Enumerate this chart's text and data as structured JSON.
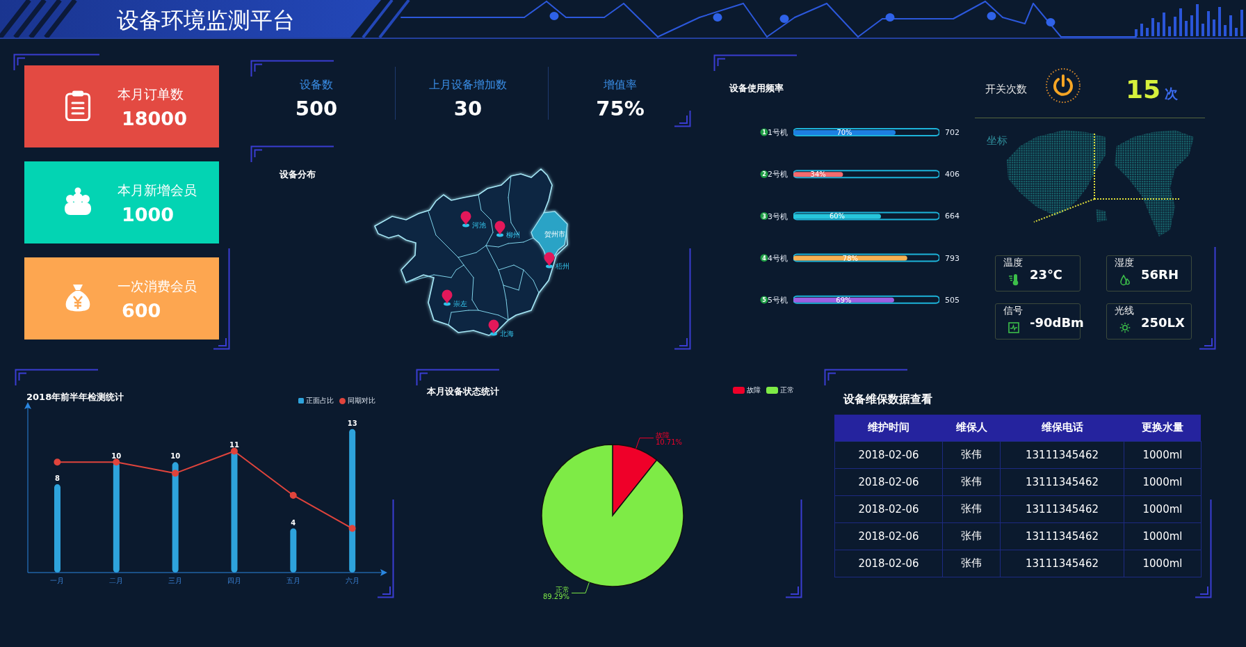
{
  "chart_data": [
    {
      "type": "other",
      "title": "设备环境监测平台"
    },
    {
      "type": "other",
      "categories": [
        "本月订单数",
        "本月新增会员",
        "一次消费会员"
      ],
      "values": [
        18000,
        1000,
        600
      ],
      "colors": [
        "#e34a42",
        "#03d4b3",
        "#fda650"
      ],
      "data_labels": true
    },
    {
      "type": "other",
      "categories": [
        "设备数",
        "上月设备增加数",
        "增值率"
      ],
      "values": [
        500,
        30,
        75
      ],
      "value_labels": [
        "500",
        "30",
        "75%"
      ]
    },
    {
      "type": "other",
      "title": "设备分布",
      "categories": [
        "河池",
        "柳州",
        "梧州",
        "崇左",
        "北海"
      ],
      "annotations": [
        "贺州市"
      ]
    },
    {
      "type": "bar",
      "orientation": "horizontal",
      "title": "设备使用频率",
      "categories": [
        "1号机",
        "2号机",
        "3号机",
        "4号机",
        "5号机"
      ],
      "y2_categories": [
        "702",
        "406",
        "664",
        "793",
        "505"
      ],
      "series": [
        {
          "color": "#1db4da",
          "values": [
            100,
            100,
            100,
            100,
            100
          ]
        },
        {
          "colors": [
            "#1d7fe2",
            "#f36b6e",
            "#26c6dc",
            "#f8b052",
            "#9d5fe3"
          ],
          "values": [
            70,
            34,
            60,
            78,
            69
          ],
          "value_labels": [
            "70%",
            "34%",
            "60%",
            "78%",
            "69%"
          ]
        }
      ],
      "xlim": [
        0,
        100
      ],
      "tick_labels": "y",
      "annotations": [
        "1",
        "2",
        "3",
        "4",
        "5"
      ]
    },
    {
      "type": "other",
      "categories": [
        "开关次数",
        "温度",
        "湿度",
        "信号",
        "光线"
      ],
      "values": [
        15,
        23,
        56,
        -90,
        250
      ],
      "value_labels": [
        "15次",
        "23℃",
        "56RH",
        "-90dBm",
        "250LX"
      ],
      "annotations": [
        "坐标"
      ]
    },
    {
      "type": "bar",
      "title": "2018年前半年检测统计",
      "categories": [
        "一月",
        "二月",
        "三月",
        "四月",
        "五月",
        "六月"
      ],
      "series": [
        {
          "name": "正面占比",
          "type": "bar",
          "color": "#2ea3dc",
          "values": [
            8,
            10,
            10,
            11,
            4,
            13
          ],
          "value_labels": [
            "8",
            "10",
            "10",
            "11",
            "4",
            "13"
          ]
        },
        {
          "name": "同期对比",
          "type": "line",
          "color": "#e0443c",
          "values": [
            10,
            10,
            9,
            11,
            7,
            4
          ]
        }
      ],
      "ylim": [
        0,
        15
      ],
      "tick_labels": "x",
      "legend": "top right",
      "marker": "circle"
    },
    {
      "type": "pie",
      "title": "本月设备状态统计",
      "categories": [
        "故障",
        "正常"
      ],
      "values": [
        10.71,
        89.29
      ],
      "colors": [
        "#ef0029",
        "#7eeb46"
      ],
      "value_labels": [
        "10.71%",
        "89.29%"
      ],
      "legend": "top right"
    },
    {
      "type": "other",
      "title": "设备维保数据查看",
      "categories": [
        "维护时间",
        "维保人",
        "维保电话",
        "更换水量"
      ],
      "cell_labels": [
        [
          "2018-02-06",
          "张伟",
          "13111345462",
          "1000ml"
        ],
        [
          "2018-02-06",
          "张伟",
          "13111345462",
          "1000ml"
        ],
        [
          "2018-02-06",
          "张伟",
          "13111345462",
          "1000ml"
        ],
        [
          "2018-02-06",
          "张伟",
          "13111345462",
          "1000ml"
        ],
        [
          "2018-02-06",
          "张伟",
          "13111345462",
          "1000ml"
        ]
      ]
    }
  ]
}
